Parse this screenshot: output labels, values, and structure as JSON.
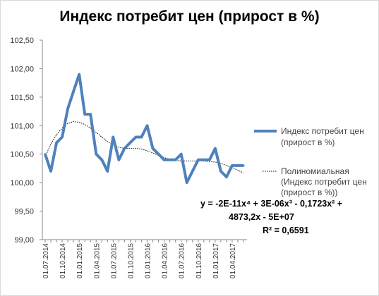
{
  "chart_data": {
    "type": "line",
    "title": "Индекс потребит цен (прирост в %)",
    "ylim": [
      99.0,
      102.5
    ],
    "y_ticks": [
      "99,00",
      "99,50",
      "100,00",
      "100,50",
      "101,00",
      "101,50",
      "102,00",
      "102,50"
    ],
    "x_tick_labels": [
      "01.07.2014",
      "01.10.2014",
      "01.01.2015",
      "01.04.2015",
      "01.07.2015",
      "01.10.2015",
      "01.01.2016",
      "01.04.2016",
      "01.07.2016",
      "01.10.2016",
      "01.01.2017",
      "01.04.2017"
    ],
    "x": [
      "2014-07",
      "2014-08",
      "2014-09",
      "2014-10",
      "2014-11",
      "2014-12",
      "2015-01",
      "2015-02",
      "2015-03",
      "2015-04",
      "2015-05",
      "2015-06",
      "2015-07",
      "2015-08",
      "2015-09",
      "2015-10",
      "2015-11",
      "2015-12",
      "2016-01",
      "2016-02",
      "2016-03",
      "2016-04",
      "2016-05",
      "2016-06",
      "2016-07",
      "2016-08",
      "2016-09",
      "2016-10",
      "2016-11",
      "2016-12",
      "2017-01",
      "2017-02",
      "2017-03",
      "2017-04",
      "2017-05",
      "2017-06"
    ],
    "series": [
      {
        "name": "Индекс потребит цен (прирост в %)",
        "color": "#4f81bd",
        "values": [
          100.5,
          100.2,
          100.7,
          100.8,
          101.3,
          101.6,
          101.9,
          101.2,
          101.2,
          100.5,
          100.4,
          100.2,
          100.8,
          100.4,
          100.6,
          100.7,
          100.8,
          100.8,
          101.0,
          100.6,
          100.5,
          100.4,
          100.4,
          100.4,
          100.5,
          100.0,
          100.2,
          100.4,
          100.4,
          100.4,
          100.6,
          100.2,
          100.1,
          100.3,
          100.3,
          100.3
        ]
      },
      {
        "name": "Полиномиальная (Индекс потребит цен (прирост в %))",
        "color": "#000000",
        "style": "dotted",
        "values": [
          100.45,
          100.68,
          100.84,
          100.96,
          101.04,
          101.07,
          101.06,
          101.02,
          100.96,
          100.88,
          100.8,
          100.72,
          100.66,
          100.62,
          100.6,
          100.6,
          100.6,
          100.59,
          100.56,
          100.52,
          100.48,
          100.44,
          100.41,
          100.39,
          100.38,
          100.38,
          100.38,
          100.38,
          100.38,
          100.37,
          100.36,
          100.34,
          100.3,
          100.26,
          100.22,
          100.17
        ]
      }
    ],
    "trendline_equation": [
      "y = -2E-11x⁴ + 3E-06x³ - 0,1723x² +",
      "4873,2x - 5E+07"
    ],
    "r_squared": "R² = 0,6591",
    "grid": false,
    "legend_position": "right"
  }
}
